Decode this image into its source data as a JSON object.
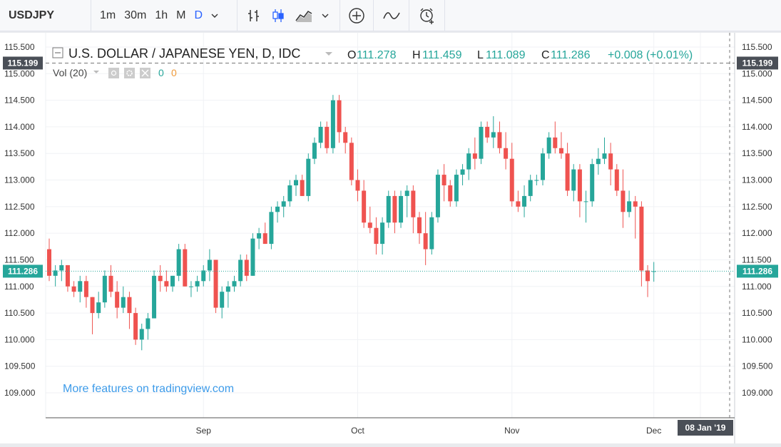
{
  "toolbar": {
    "symbol": "USDJPY",
    "intervals": [
      "1m",
      "30m",
      "1h",
      "M",
      "D"
    ],
    "active_interval": "D",
    "icons": [
      "chevron-down-icon",
      "bar-chart-icon",
      "candle-chart-icon",
      "area-chart-icon",
      "chevron-down-icon",
      "add-circle-icon",
      "indicator-wave-icon",
      "alarm-clock-add-icon"
    ]
  },
  "legend": {
    "title": "U.S. DOLLAR / JAPANESE YEN, D, IDC",
    "o_label": "O",
    "o_value": "111.278",
    "h_label": "H",
    "h_value": "111.459",
    "l_label": "L",
    "l_value": "111.089",
    "c_label": "C",
    "c_value": "111.286",
    "change": "+0.008 (+0.01%)",
    "vol_label": "Vol (20)",
    "vol_value_1": "0",
    "vol_value_2": "0"
  },
  "watermark": "More features on tradingview.com",
  "crosshair": {
    "price": "115.199",
    "date": "08 Jan '19"
  },
  "last_price": "111.286",
  "colors": {
    "up": "#26a69a",
    "down": "#ef5350",
    "accent": "#2962ff",
    "link": "#3d9be9"
  },
  "chart_data": {
    "type": "candlestick",
    "title": "U.S. DOLLAR / JAPANESE YEN, D, IDC",
    "ylim": [
      108.5,
      115.7
    ],
    "y_ticks": [
      "109.000",
      "109.500",
      "110.000",
      "110.500",
      "111.000",
      "111.500",
      "112.000",
      "112.500",
      "113.000",
      "113.500",
      "114.000",
      "114.500",
      "115.000",
      "115.500"
    ],
    "x_ticks": [
      {
        "label": "Sep",
        "index": 25
      },
      {
        "label": "Oct",
        "index": 50
      },
      {
        "label": "Nov",
        "index": 75
      },
      {
        "label": "Dec",
        "index": 98
      }
    ],
    "grid": true,
    "ohlc": [
      [
        111.7,
        111.9,
        111.1,
        111.2
      ],
      [
        111.2,
        111.4,
        111.0,
        111.3
      ],
      [
        111.3,
        111.5,
        111.1,
        111.4
      ],
      [
        111.4,
        111.4,
        110.9,
        111.0
      ],
      [
        111.0,
        111.1,
        110.8,
        110.9
      ],
      [
        110.9,
        111.2,
        110.7,
        111.1
      ],
      [
        111.1,
        111.2,
        110.6,
        110.8
      ],
      [
        110.8,
        110.8,
        110.1,
        110.5
      ],
      [
        110.5,
        110.9,
        110.4,
        110.7
      ],
      [
        110.7,
        111.3,
        110.6,
        111.2
      ],
      [
        111.2,
        111.4,
        110.8,
        110.9
      ],
      [
        110.9,
        111.1,
        110.4,
        110.6
      ],
      [
        110.6,
        111.0,
        110.5,
        110.8
      ],
      [
        110.8,
        110.9,
        110.2,
        110.5
      ],
      [
        110.5,
        110.6,
        109.9,
        110.0
      ],
      [
        110.0,
        110.3,
        109.8,
        110.2
      ],
      [
        110.2,
        110.5,
        110.0,
        110.4
      ],
      [
        110.4,
        111.3,
        110.4,
        111.2
      ],
      [
        111.2,
        111.4,
        110.9,
        111.1
      ],
      [
        111.1,
        111.3,
        110.9,
        111.0
      ],
      [
        111.0,
        111.2,
        110.9,
        111.2
      ],
      [
        111.2,
        111.8,
        111.1,
        111.7
      ],
      [
        111.7,
        111.8,
        111.0,
        111.0
      ],
      [
        111.0,
        111.1,
        110.8,
        111.0
      ],
      [
        111.0,
        111.2,
        110.9,
        111.1
      ],
      [
        111.1,
        111.4,
        111.0,
        111.3
      ],
      [
        111.3,
        111.7,
        111.1,
        111.5
      ],
      [
        111.5,
        111.5,
        110.5,
        110.6
      ],
      [
        110.6,
        111.0,
        110.4,
        110.9
      ],
      [
        110.9,
        111.1,
        110.6,
        111.0
      ],
      [
        111.0,
        111.2,
        110.9,
        111.1
      ],
      [
        111.1,
        111.6,
        111.0,
        111.5
      ],
      [
        111.5,
        111.6,
        111.1,
        111.2
      ],
      [
        111.2,
        112.0,
        111.2,
        111.9
      ],
      [
        111.9,
        112.1,
        111.7,
        112.0
      ],
      [
        112.0,
        112.2,
        111.8,
        111.8
      ],
      [
        111.8,
        112.5,
        111.7,
        112.4
      ],
      [
        112.4,
        112.6,
        112.2,
        112.5
      ],
      [
        112.5,
        112.7,
        112.3,
        112.6
      ],
      [
        112.6,
        113.0,
        112.5,
        112.9
      ],
      [
        112.9,
        113.1,
        112.7,
        113.0
      ],
      [
        113.0,
        113.1,
        112.7,
        112.7
      ],
      [
        112.7,
        113.5,
        112.6,
        113.4
      ],
      [
        113.4,
        113.8,
        113.3,
        113.7
      ],
      [
        113.7,
        114.1,
        113.6,
        114.0
      ],
      [
        114.0,
        114.1,
        113.5,
        113.6
      ],
      [
        113.6,
        114.6,
        113.5,
        114.5
      ],
      [
        114.5,
        114.6,
        113.7,
        113.9
      ],
      [
        113.9,
        114.0,
        113.5,
        113.7
      ],
      [
        113.7,
        113.8,
        112.9,
        113.0
      ],
      [
        113.0,
        113.2,
        112.6,
        112.8
      ],
      [
        112.8,
        113.0,
        112.1,
        112.2
      ],
      [
        112.2,
        112.5,
        112.0,
        112.1
      ],
      [
        112.1,
        112.3,
        111.6,
        111.8
      ],
      [
        111.8,
        112.3,
        111.6,
        112.2
      ],
      [
        112.2,
        112.8,
        112.1,
        112.7
      ],
      [
        112.7,
        112.8,
        112.0,
        112.2
      ],
      [
        112.2,
        112.8,
        112.1,
        112.7
      ],
      [
        112.7,
        112.9,
        112.3,
        112.8
      ],
      [
        112.8,
        112.9,
        112.0,
        112.3
      ],
      [
        112.3,
        112.4,
        111.8,
        112.0
      ],
      [
        112.0,
        112.4,
        111.4,
        111.7
      ],
      [
        111.7,
        112.4,
        111.6,
        112.3
      ],
      [
        112.3,
        113.2,
        112.2,
        113.1
      ],
      [
        113.1,
        113.3,
        112.6,
        112.9
      ],
      [
        112.9,
        113.0,
        112.5,
        112.6
      ],
      [
        112.6,
        113.2,
        112.5,
        113.1
      ],
      [
        113.1,
        113.3,
        112.9,
        113.2
      ],
      [
        113.2,
        113.6,
        113.0,
        113.5
      ],
      [
        113.5,
        113.8,
        113.2,
        113.4
      ],
      [
        113.4,
        114.1,
        113.3,
        114.0
      ],
      [
        114.0,
        114.1,
        113.7,
        113.8
      ],
      [
        113.8,
        114.2,
        113.6,
        113.9
      ],
      [
        113.9,
        114.1,
        113.5,
        113.6
      ],
      [
        113.6,
        113.9,
        113.2,
        113.4
      ],
      [
        113.4,
        113.7,
        112.5,
        112.6
      ],
      [
        112.6,
        112.8,
        112.4,
        112.5
      ],
      [
        112.5,
        112.9,
        112.3,
        112.7
      ],
      [
        112.7,
        113.1,
        112.6,
        113.0
      ],
      [
        113.0,
        113.1,
        112.9,
        113.0
      ],
      [
        113.0,
        113.6,
        112.9,
        113.5
      ],
      [
        113.5,
        113.9,
        113.4,
        113.8
      ],
      [
        113.8,
        114.1,
        113.5,
        113.6
      ],
      [
        113.6,
        113.9,
        113.4,
        113.5
      ],
      [
        113.5,
        113.7,
        112.7,
        112.8
      ],
      [
        112.8,
        113.3,
        112.6,
        113.2
      ],
      [
        113.2,
        113.3,
        112.3,
        112.6
      ],
      [
        112.6,
        112.8,
        112.2,
        112.6
      ],
      [
        112.6,
        113.4,
        112.5,
        113.3
      ],
      [
        113.3,
        113.6,
        113.1,
        113.4
      ],
      [
        113.4,
        113.8,
        113.3,
        113.5
      ],
      [
        113.5,
        113.7,
        112.9,
        113.2
      ],
      [
        113.2,
        113.3,
        112.7,
        112.8
      ],
      [
        112.8,
        113.2,
        112.1,
        112.4
      ],
      [
        112.4,
        112.8,
        112.3,
        112.6
      ],
      [
        112.6,
        112.7,
        111.9,
        112.5
      ],
      [
        112.5,
        112.6,
        111.0,
        111.3
      ],
      [
        111.3,
        111.4,
        110.8,
        111.1
      ],
      [
        111.278,
        111.459,
        111.089,
        111.286
      ]
    ]
  }
}
